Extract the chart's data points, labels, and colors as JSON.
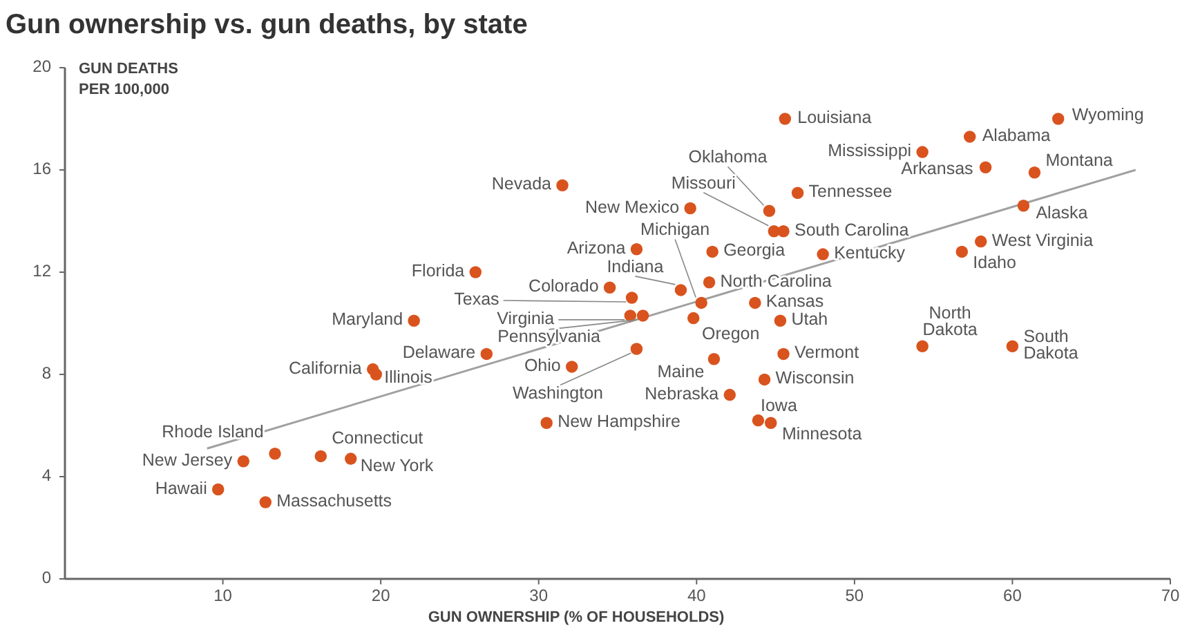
{
  "chart_data": {
    "type": "scatter",
    "title": "Gun ownership vs. gun deaths, by state",
    "xlabel": "GUN OWNERSHIP (% OF HOUSEHOLDS)",
    "ylabel": "GUN DEATHS PER 100,000",
    "xlim": [
      0,
      70
    ],
    "ylim": [
      0,
      20
    ],
    "xticks": [
      10,
      20,
      30,
      40,
      50,
      60,
      70
    ],
    "yticks": [
      0,
      4,
      8,
      12,
      16,
      20
    ],
    "grid": false,
    "marker": "circle",
    "series": [
      {
        "color": "#d9531e",
        "x": [
          45.6,
          62.9,
          57.3,
          54.3,
          58.3,
          61.4,
          46.4,
          44.6,
          44.9,
          45.5,
          39.6,
          60.7,
          36.2,
          41.0,
          48.0,
          58.0,
          56.8,
          39.0,
          34.5,
          40.8,
          35.9,
          40.3,
          43.7,
          35.8,
          36.6,
          39.8,
          45.3,
          36.2,
          41.1,
          45.5,
          54.3,
          60.0,
          44.3,
          42.1,
          43.9,
          44.7,
          31.5,
          26.0,
          22.1,
          26.7,
          19.5,
          19.7,
          32.1,
          30.5,
          13.3,
          11.3,
          16.2,
          18.1,
          9.7,
          12.7
        ],
        "values": [
          18.0,
          18.0,
          17.3,
          16.7,
          16.1,
          15.9,
          15.1,
          14.4,
          13.6,
          13.6,
          14.5,
          14.6,
          12.9,
          12.8,
          12.7,
          13.2,
          12.8,
          11.3,
          11.4,
          11.6,
          11.0,
          10.8,
          10.8,
          10.3,
          10.3,
          10.2,
          10.1,
          9.0,
          8.6,
          8.8,
          9.1,
          9.1,
          7.8,
          7.2,
          6.2,
          6.1,
          15.4,
          12.0,
          10.1,
          8.8,
          8.2,
          8.0,
          8.3,
          6.1,
          4.9,
          4.6,
          4.8,
          4.7,
          3.5,
          3.0
        ],
        "value_labels": [
          "Louisiana",
          "Wyoming",
          "Alabama",
          "Mississippi",
          "Arkansas",
          "Montana",
          "Tennessee",
          "Oklahoma",
          "Missouri",
          "South Carolina",
          "New Mexico",
          "Alaska",
          "Arizona",
          "Georgia",
          "Kentucky",
          "West Virginia",
          "Idaho",
          "Indiana",
          "Colorado",
          "North Carolina",
          "Texas",
          "Michigan",
          "Kansas",
          "Virginia",
          "Pennsylvania",
          "Oregon",
          "Utah",
          "Washington",
          "Maine",
          "Vermont",
          "North Dakota",
          "South Dakota",
          "Wisconsin",
          "Nebraska",
          "Iowa",
          "Minnesota",
          "Nevada",
          "Florida",
          "Maryland",
          "Delaware",
          "California",
          "Illinois",
          "Ohio",
          "New Hampshire",
          "Rhode Island",
          "New Jersey",
          "Connecticut",
          "New York",
          "Hawaii",
          "Massachusetts"
        ]
      },
      {
        "type": "line",
        "marker": "none",
        "color": "#a0a0a0",
        "x": [
          9.0,
          67.8
        ],
        "values": [
          5.1,
          16.0
        ]
      }
    ]
  }
}
